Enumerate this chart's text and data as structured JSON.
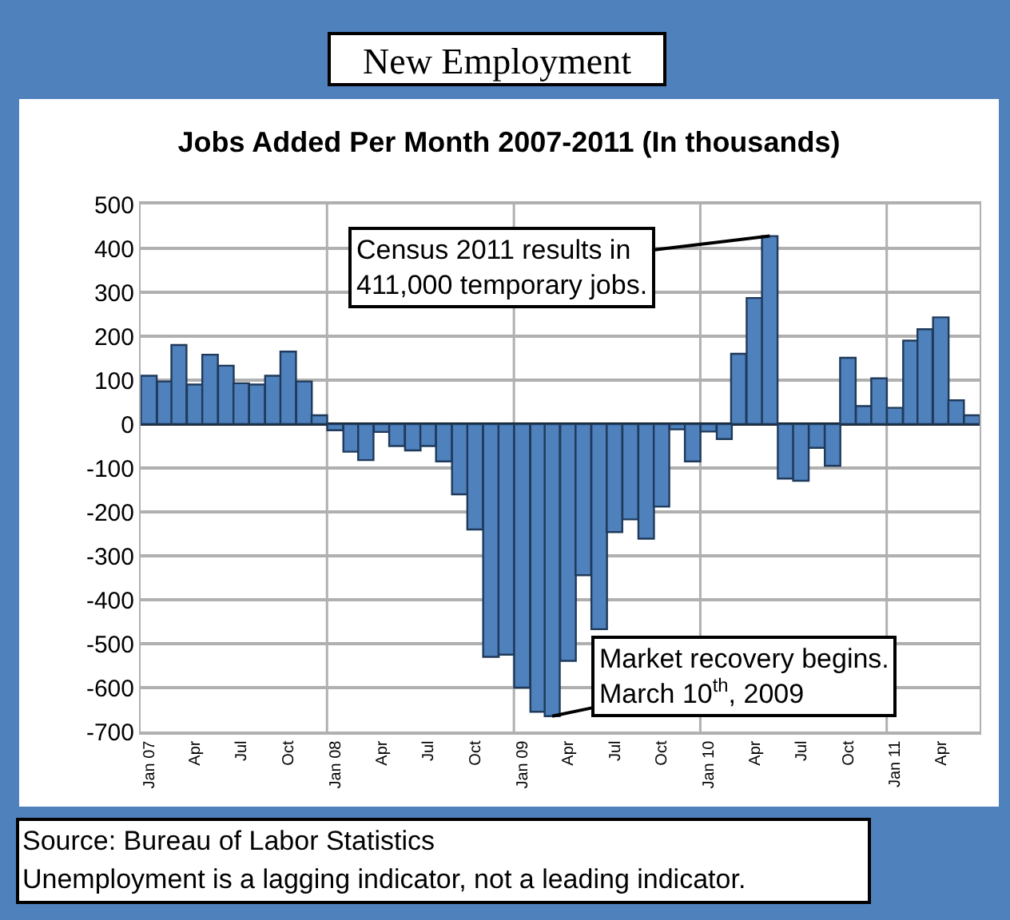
{
  "chart_data": {
    "type": "bar",
    "title": "New Employment",
    "subtitle": "Jobs Added Per Month 2007-2011 (In thousands)",
    "x": [
      "2007-01",
      "2007-02",
      "2007-03",
      "2007-04",
      "2007-05",
      "2007-06",
      "2007-07",
      "2007-08",
      "2007-09",
      "2007-10",
      "2007-11",
      "2007-12",
      "2008-01",
      "2008-02",
      "2008-03",
      "2008-04",
      "2008-05",
      "2008-06",
      "2008-07",
      "2008-08",
      "2008-09",
      "2008-10",
      "2008-11",
      "2008-12",
      "2009-01",
      "2009-02",
      "2009-03",
      "2009-04",
      "2009-05",
      "2009-06",
      "2009-07",
      "2009-08",
      "2009-09",
      "2009-10",
      "2009-11",
      "2009-12",
      "2010-01",
      "2010-02",
      "2010-03",
      "2010-04",
      "2010-05",
      "2010-06",
      "2010-07",
      "2010-08",
      "2010-09",
      "2010-10",
      "2010-11",
      "2010-12",
      "2011-01",
      "2011-02",
      "2011-03",
      "2011-04",
      "2011-05",
      "2011-06"
    ],
    "values": [
      110,
      97,
      180,
      90,
      158,
      133,
      93,
      90,
      110,
      165,
      97,
      20,
      -14,
      -63,
      -82,
      -18,
      -50,
      -60,
      -50,
      -85,
      -160,
      -240,
      -530,
      -525,
      -600,
      -655,
      -665,
      -539,
      -344,
      -467,
      -246,
      -217,
      -261,
      -188,
      -12,
      -85,
      -17,
      -34,
      160,
      287,
      428,
      -124,
      -129,
      -54,
      -95,
      151,
      41,
      104,
      37,
      190,
      216,
      243,
      54,
      20
    ],
    "color": "#4f81bd",
    "xlim": [
      "2006-12-16",
      "2011-06-16"
    ],
    "xticks": [
      {
        "value": "2007-01",
        "label": "Jan 07"
      },
      {
        "value": "2007-04",
        "label": "Apr"
      },
      {
        "value": "2007-07",
        "label": "Jul"
      },
      {
        "value": "2007-10",
        "label": "Oct"
      },
      {
        "value": "2008-01",
        "label": "Jan 08"
      },
      {
        "value": "2008-04",
        "label": "Apr"
      },
      {
        "value": "2008-07",
        "label": "Jul"
      },
      {
        "value": "2008-10",
        "label": "Oct"
      },
      {
        "value": "2009-01",
        "label": "Jan 09"
      },
      {
        "value": "2009-04",
        "label": "Apr"
      },
      {
        "value": "2009-07",
        "label": "Jul"
      },
      {
        "value": "2009-10",
        "label": "Oct"
      },
      {
        "value": "2010-01",
        "label": "Jan 10"
      },
      {
        "value": "2010-04",
        "label": "Apr"
      },
      {
        "value": "2010-07",
        "label": "Jul"
      },
      {
        "value": "2010-10",
        "label": "Oct"
      },
      {
        "value": "2011-01",
        "label": "Jan 11"
      },
      {
        "value": "2011-04",
        "label": "Apr"
      }
    ],
    "ylim": [
      -700,
      500
    ],
    "yticks": [
      -700,
      -600,
      -500,
      -400,
      -300,
      -200,
      -100,
      0,
      100,
      200,
      300,
      400,
      500
    ],
    "grid": true,
    "annotations": [
      {
        "text": "Census 2011 results in\n411,000 temporary jobs.",
        "x": "2010-05",
        "y": 428
      },
      {
        "text": "Market recovery begins.\nMarch 10$^{th}$, 2009",
        "x": "2009-03",
        "y": -665
      },
      "Source: Bureau of Labor Statistics",
      "Unemployment is a lagging indicator, not a leading indicator."
    ]
  }
}
